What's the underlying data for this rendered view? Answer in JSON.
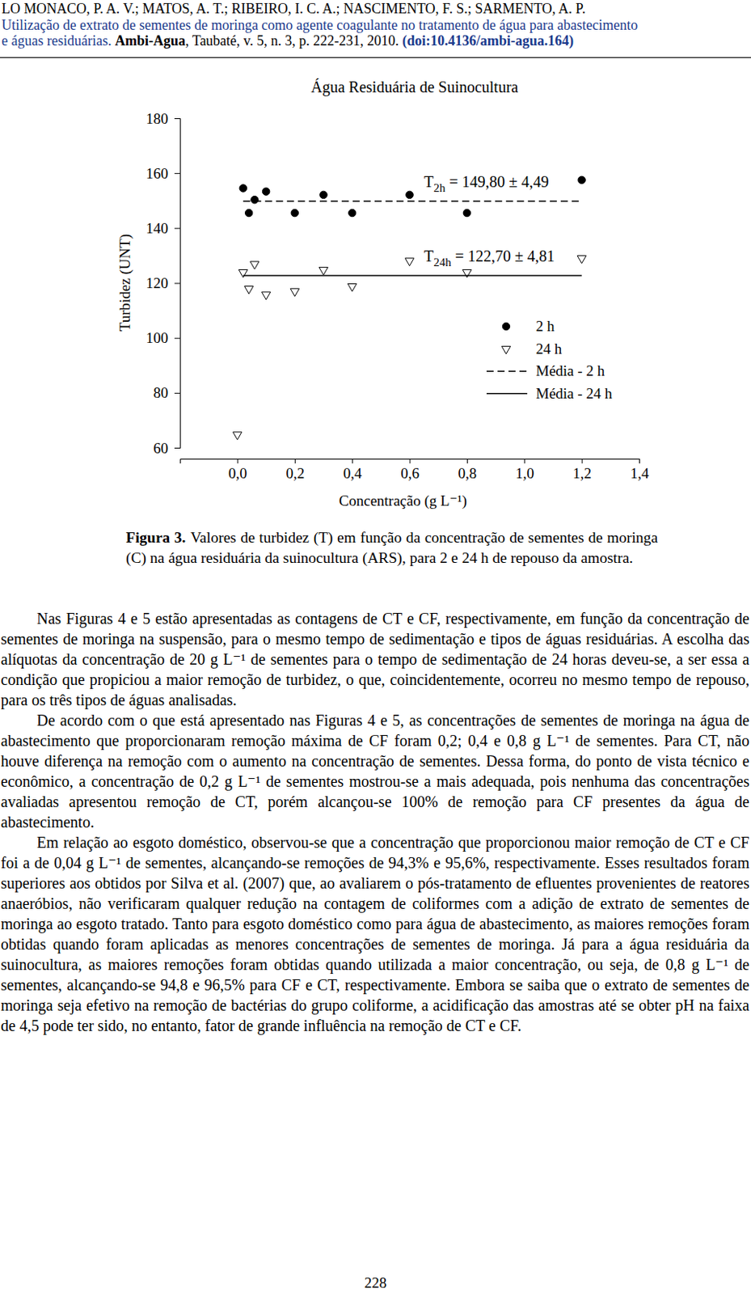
{
  "header": {
    "authors": "LO MONACO, P. A. V.; MATOS, A. T.; RIBEIRO, I. C. A.; NASCIMENTO, F. S.; SARMENTO, A. P.",
    "title_line": "Utilização de extrato de sementes de moringa como agente coagulante no tratamento de água para abastecimento",
    "title_end": "e águas residuárias. ",
    "journal": "Ambi-Agua",
    "details": ", Taubaté, v. 5, n. 3, p. 222-231, 2010. ",
    "doi": "(doi:10.4136/ambi-agua.164)"
  },
  "chart_data": {
    "type": "scatter",
    "title": "Água Residuária de Suinocultura",
    "x_label": "Concentração (g L⁻¹)",
    "y_label": "Turbidez (UNT)",
    "xlim": [
      -0.2,
      1.4
    ],
    "ylim": [
      60,
      180
    ],
    "xticks": [
      {
        "value": 0,
        "label": "0,0"
      },
      {
        "value": 0.2,
        "label": "0,2"
      },
      {
        "value": 0.4,
        "label": "0,4"
      },
      {
        "value": 0.6,
        "label": "0,6"
      },
      {
        "value": 0.8,
        "label": "0,8"
      },
      {
        "value": 1,
        "label": "1,0"
      },
      {
        "value": 1.2,
        "label": "1,2"
      },
      {
        "value": 1.4,
        "label": "1,4"
      }
    ],
    "yticks": [
      60,
      80,
      100,
      120,
      140,
      160,
      180
    ],
    "grid": false,
    "legend": "right",
    "series": [
      {
        "name": "2 h",
        "type": "scatter",
        "marker": "circle",
        "color": "#000000",
        "x": [
          0.02,
          0.04,
          0.06,
          0.1,
          0.2,
          0.3,
          0.4,
          0.6,
          0.8,
          1.2
        ],
        "values": [
          154.5,
          145.5,
          150.3,
          153.3,
          145.5,
          152.1,
          145.5,
          152.1,
          145.5,
          157.5
        ]
      },
      {
        "name": "24 h",
        "type": "scatter",
        "marker": "triangle-down",
        "color": "#000000",
        "x": [
          0,
          0.02,
          0.04,
          0.06,
          0.1,
          0.2,
          0.3,
          0.4,
          0.6,
          0.8,
          1.2
        ],
        "values": [
          64.8,
          123.9,
          117.9,
          126.9,
          115.8,
          117.0,
          124.8,
          118.8,
          128.1,
          123.9,
          129.0
        ]
      },
      {
        "name": "Média - 2 h",
        "type": "line",
        "line_style": "dashed",
        "color": "#000000",
        "x": [
          0.02,
          1.2
        ],
        "values": [
          149.8,
          149.8
        ]
      },
      {
        "name": "Média - 24 h",
        "type": "line",
        "line_style": "solid",
        "color": "#000000",
        "x": [
          0.02,
          1.2
        ],
        "values": [
          122.7,
          122.7
        ]
      }
    ],
    "annotations": [
      {
        "label": "T",
        "subscript": "2h",
        "text": " = 149,80 ± 4,49"
      },
      {
        "label": "T",
        "subscript": "24h",
        "text": " = 122,70 ± 4,81"
      }
    ]
  },
  "caption": {
    "label": "Figura 3.",
    "text": "Valores de turbidez (T) em função da concentração de sementes de moringa (C) na água residuária da suinocultura (ARS), para 2 e 24 h de repouso da amostra."
  },
  "paragraphs": [
    "Nas Figuras 4 e 5 estão apresentadas as contagens de CT e CF, respectivamente, em função da concentração de sementes de moringa na suspensão, para o mesmo tempo de sedimentação e tipos de águas residuárias. A escolha das alíquotas da concentração de 20 g L⁻¹ de sementes para o tempo de sedimentação de 24 horas deveu-se, a ser essa a condição que propiciou a maior remoção de turbidez, o que, coincidentemente, ocorreu no mesmo tempo de repouso, para os três tipos de águas analisadas.",
    "De acordo com o que está apresentado nas Figuras 4 e 5, as concentrações de sementes de moringa na água de abastecimento que proporcionaram remoção máxima de CF foram 0,2; 0,4 e 0,8 g L⁻¹ de sementes. Para CT, não houve diferença na remoção com o aumento na concentração de sementes. Dessa forma, do ponto de vista técnico e econômico, a concentração de 0,2 g L⁻¹ de sementes mostrou-se a mais adequada, pois nenhuma das concentrações avaliadas apresentou remoção de CT, porém alcançou-se 100% de remoção para CF presentes da água de abastecimento.",
    "Em relação ao esgoto doméstico, observou-se que a concentração que proporcionou maior remoção de CT e CF foi a de 0,04 g L⁻¹ de sementes, alcançando-se remoções de 94,3% e 95,6%, respectivamente. Esses resultados foram superiores aos obtidos por Silva et al. (2007) que, ao avaliarem o pós-tratamento de efluentes provenientes de reatores anaeróbios, não verificaram qualquer redução na contagem de coliformes com a adição de extrato de sementes de moringa ao esgoto tratado. Tanto para esgoto doméstico como para água de abastecimento, as maiores remoções foram obtidas quando foram aplicadas as menores concentrações de sementes de moringa. Já para a água residuária da suinocultura, as maiores remoções foram obtidas quando utilizada a maior concentração, ou seja, de 0,8 g L⁻¹ de sementes, alcançando-se 94,8 e 96,5% para CF e CT, respectivamente. Embora se saiba que o extrato de sementes de moringa seja efetivo na remoção de bactérias do grupo coliforme, a acidificação das amostras até se obter pH na faixa de 4,5 pode ter sido, no entanto, fator de grande influência na remoção de CT e CF."
  ],
  "page_number": "228"
}
